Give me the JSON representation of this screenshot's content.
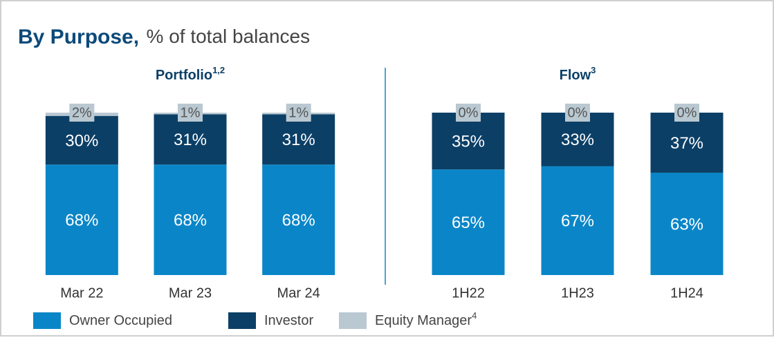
{
  "title": "By Purpose,",
  "subtitle": "% of total balances",
  "legend": {
    "items": [
      {
        "name": "Owner Occupied",
        "color": "#0a86c8"
      },
      {
        "name": "Investor",
        "color": "#0b3f66"
      },
      {
        "name": "Equity Manager",
        "note": "4",
        "color": "#b9c8d1"
      }
    ]
  },
  "chart_data": [
    {
      "type": "bar",
      "stacked": true,
      "title": "Portfolio",
      "title_note": "1,2",
      "categories": [
        "Mar 22",
        "Mar 23",
        "Mar 24"
      ],
      "ylim": [
        0,
        100
      ],
      "series": [
        {
          "values": [
            68,
            68,
            68
          ],
          "value_labels": [
            "68%",
            "68%",
            "68%"
          ]
        },
        {
          "values": [
            30,
            31,
            31
          ],
          "value_labels": [
            "30%",
            "31%",
            "31%"
          ]
        },
        {
          "values": [
            2,
            1,
            1
          ],
          "value_labels": [
            "2%",
            "1%",
            "1%"
          ]
        }
      ]
    },
    {
      "type": "bar",
      "stacked": true,
      "title": "Flow",
      "title_note": "3",
      "categories": [
        "1H22",
        "1H23",
        "1H24"
      ],
      "ylim": [
        0,
        100
      ],
      "series": [
        {
          "values": [
            65,
            67,
            63
          ],
          "value_labels": [
            "65%",
            "67%",
            "63%"
          ]
        },
        {
          "values": [
            35,
            33,
            37
          ],
          "value_labels": [
            "35%",
            "33%",
            "37%"
          ]
        },
        {
          "values": [
            0,
            0,
            0
          ],
          "value_labels": [
            "0%",
            "0%",
            "0%"
          ]
        }
      ]
    }
  ]
}
